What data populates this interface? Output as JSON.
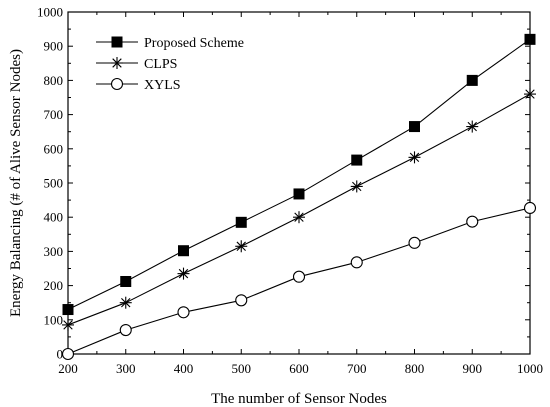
{
  "chart_data": {
    "type": "line",
    "xlabel": "The number of Sensor Nodes",
    "ylabel": "Energy Balancing (# of Alive Sensor Nodes)",
    "xlim": [
      200,
      1000
    ],
    "ylim": [
      0,
      1000
    ],
    "x_ticks": [
      200,
      300,
      400,
      500,
      600,
      700,
      800,
      900,
      1000
    ],
    "y_ticks": [
      0,
      100,
      200,
      300,
      400,
      500,
      600,
      700,
      800,
      900,
      1000
    ],
    "grid": false,
    "legend_position": "top-left",
    "x": [
      200,
      300,
      400,
      500,
      600,
      700,
      800,
      900,
      1000
    ],
    "series": [
      {
        "name": "Proposed Scheme",
        "marker": "filled-square",
        "color": "#000000",
        "values": [
          130,
          212,
          302,
          385,
          468,
          567,
          665,
          800,
          920
        ]
      },
      {
        "name": "CLPS",
        "marker": "asterisk",
        "color": "#000000",
        "values": [
          85,
          150,
          235,
          315,
          400,
          490,
          575,
          665,
          760
        ]
      },
      {
        "name": "XYLS",
        "marker": "open-circle",
        "color": "#000000",
        "values": [
          0,
          70,
          122,
          157,
          226,
          268,
          325,
          387,
          427
        ]
      }
    ]
  }
}
